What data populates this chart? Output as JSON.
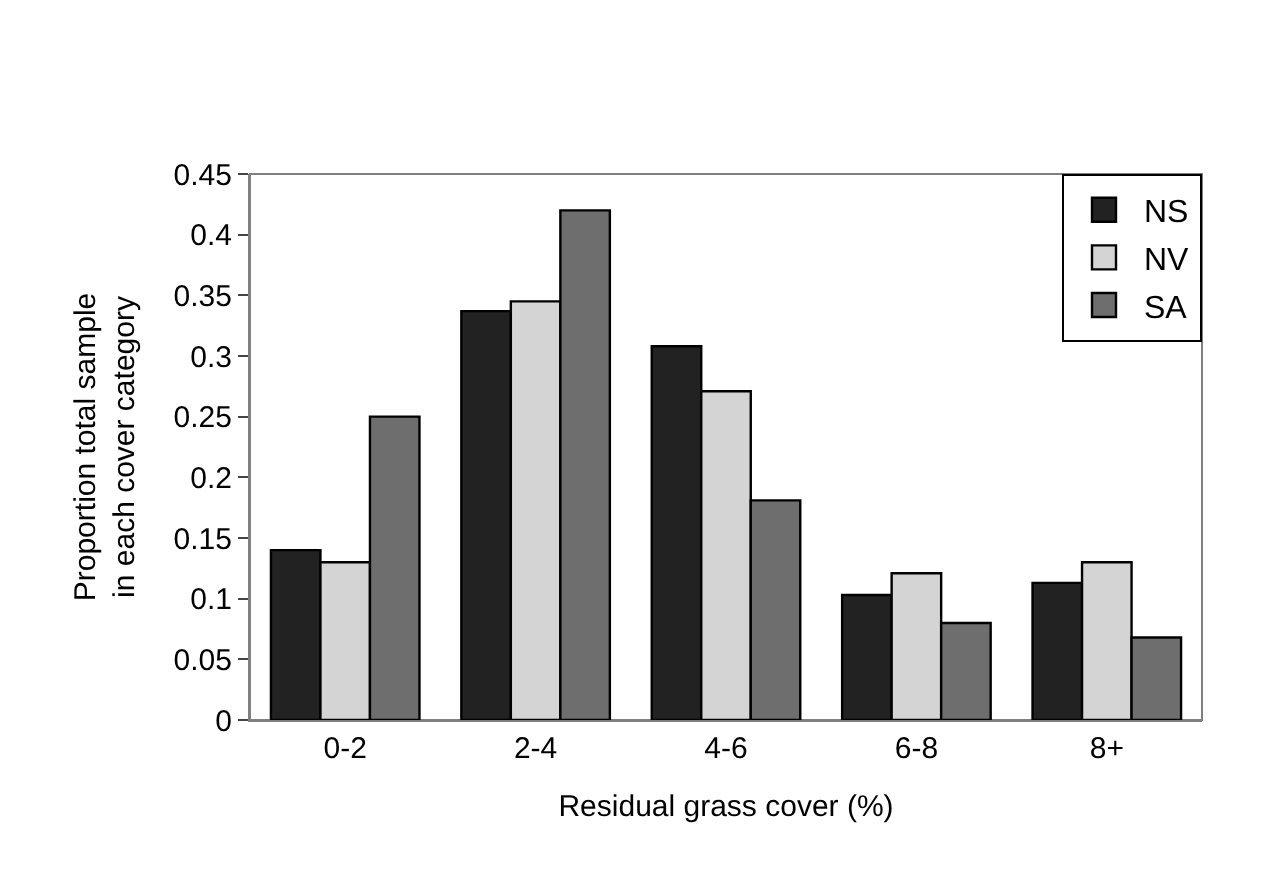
{
  "chart_data": {
    "type": "bar",
    "xlabel": "Residual grass cover (%)",
    "ylabel": "Proportion total sample in each cover category",
    "categories": [
      "0-2",
      "2-4",
      "4-6",
      "6-8",
      "8+"
    ],
    "series": [
      {
        "name": "NS",
        "color": "#222222",
        "values": [
          0.14,
          0.337,
          0.308,
          0.103,
          0.113
        ]
      },
      {
        "name": "NV",
        "color": "#d4d4d4",
        "values": [
          0.13,
          0.345,
          0.271,
          0.121,
          0.13
        ]
      },
      {
        "name": "SA",
        "color": "#6e6e6e",
        "values": [
          0.25,
          0.42,
          0.181,
          0.08,
          0.068
        ]
      }
    ],
    "ylim": [
      0,
      0.45
    ],
    "yticks": [
      0,
      0.05,
      0.1,
      0.15,
      0.2,
      0.25,
      0.3,
      0.35,
      0.4,
      0.45
    ],
    "grid": false,
    "legend": "top right"
  }
}
